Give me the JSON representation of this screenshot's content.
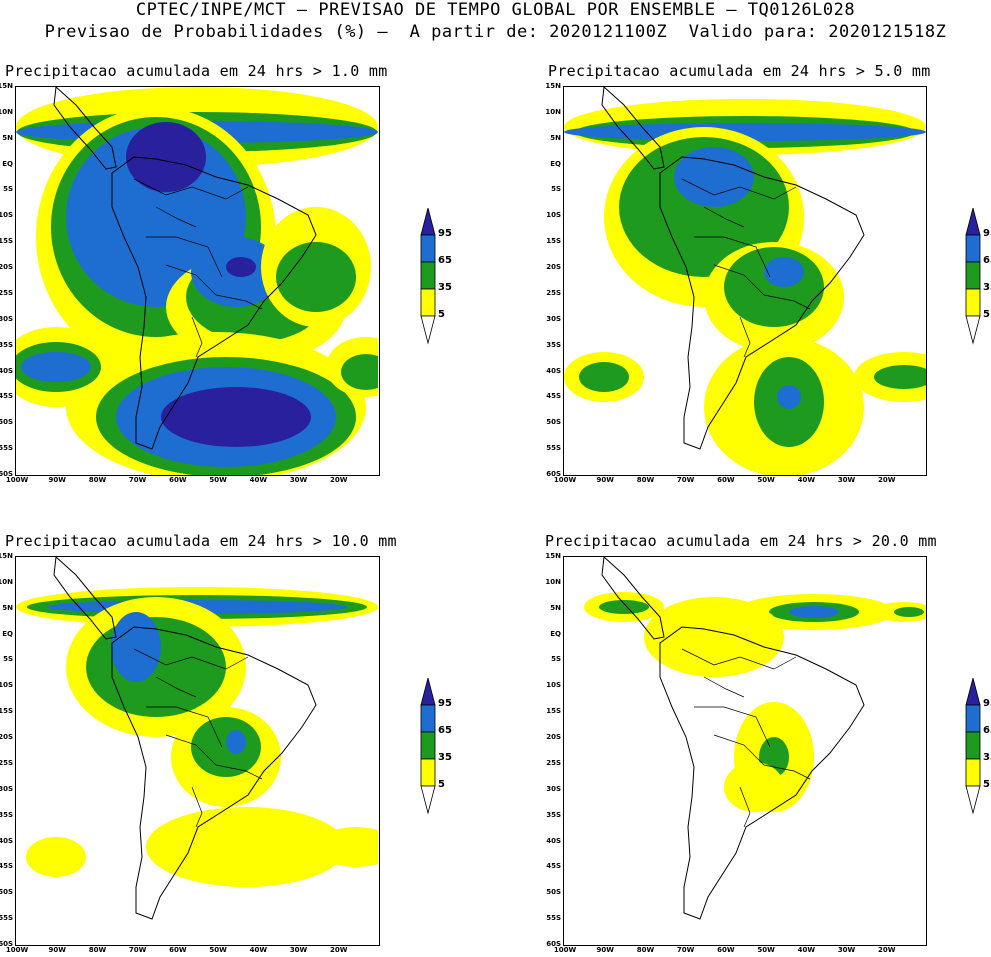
{
  "header": {
    "line1": "CPTEC/INPE/MCT – PREVISAO DE TEMPO GLOBAL POR ENSEMBLE – TQ0126L028",
    "line2": "Previsao de Probabilidades (%) –  A partir de: 2020121100Z  Valido para: 2020121518Z"
  },
  "panels": [
    {
      "title": "Precipitacao acumulada em 24 hrs > 1.0 mm"
    },
    {
      "title": "Precipitacao acumulada em 24 hrs > 5.0 mm"
    },
    {
      "title": "Precipitacao acumulada em 24 hrs > 10.0 mm"
    },
    {
      "title": "Precipitacao acumulada em 24 hrs > 20.0 mm"
    }
  ],
  "axes": {
    "lat_labels": [
      "15N",
      "10N",
      "5N",
      "EQ",
      "5S",
      "10S",
      "15S",
      "20S",
      "25S",
      "30S",
      "35S",
      "40S",
      "45S",
      "50S",
      "55S",
      "60S"
    ],
    "lon_labels": [
      "100W",
      "90W",
      "80W",
      "70W",
      "60W",
      "50W",
      "40W",
      "30W",
      "20W"
    ]
  },
  "colorbar": {
    "levels": [
      "95",
      "65",
      "35",
      "5"
    ],
    "colors": {
      "yellow": "#ffff00",
      "green": "#1e9a1e",
      "blue": "#1e6ed2",
      "darkblue": "#28209c"
    }
  }
}
